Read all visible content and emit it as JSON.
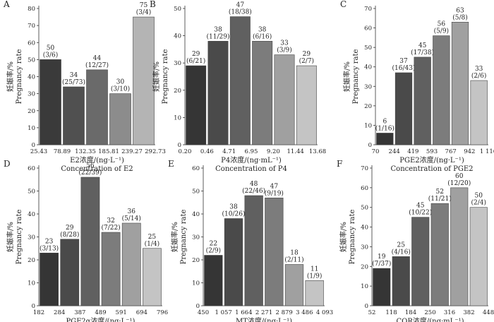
{
  "chart_data": [
    {
      "type": "bar",
      "panel": "A",
      "ylabel_cn": "妊娠率/%",
      "ylabel_en": "Pregnancy rate",
      "xlabel_cn": "E2浓度/(ng·L⁻¹)",
      "xlabel_en": "Concentration of E2",
      "x_ticks": [
        "25.43",
        "78.89",
        "132.35",
        "185.81",
        "239.27",
        "292.73"
      ],
      "ylim": [
        0,
        80
      ],
      "y_ticks": [
        0,
        10,
        20,
        30,
        40,
        50,
        60,
        70,
        80
      ],
      "values": [
        50,
        34,
        44,
        30,
        75
      ],
      "counts": [
        "(3/6)",
        "(25/73)",
        "(12/27)",
        "(3/10)",
        "(3/4)"
      ],
      "colors": [
        "#3a3a3a",
        "#505050",
        "#6a6a6a",
        "#8c8c8c",
        "#b4b4b4"
      ]
    },
    {
      "type": "bar",
      "panel": "B",
      "ylabel_cn": "妊娠率/%",
      "ylabel_en": "Pregnancy rate",
      "xlabel_cn": "P4浓度/(ng·mL⁻¹)",
      "xlabel_en": "Concentration of P4",
      "x_ticks": [
        "0.20",
        "0.46",
        "4.71",
        "6.95",
        "9.20",
        "11.44",
        "13.68"
      ],
      "ylim": [
        0,
        50
      ],
      "y_ticks": [
        0,
        10,
        20,
        30,
        40,
        50
      ],
      "values": [
        29,
        38,
        47,
        38,
        33,
        29
      ],
      "counts": [
        "(6/21)",
        "(11/29)",
        "(18/38)",
        "(6/16)",
        "(3/9)",
        "(2/7)"
      ],
      "colors": [
        "#353535",
        "#4a4a4a",
        "#606060",
        "#7c7c7c",
        "#a0a0a0",
        "#c4c4c4"
      ]
    },
    {
      "type": "bar",
      "panel": "C",
      "ylabel_cn": "妊娠率/%",
      "ylabel_en": "Pregnancy rate",
      "xlabel_cn": "PGE2浓度/(ng·L⁻¹)",
      "xlabel_en": "Concentration of PGE2",
      "x_ticks": [
        "70",
        "244",
        "419",
        "593",
        "767",
        "942",
        "1 116"
      ],
      "ylim": [
        0,
        70
      ],
      "y_ticks": [
        0,
        10,
        20,
        30,
        40,
        50,
        60,
        70
      ],
      "values": [
        6,
        37,
        45,
        56,
        63,
        33
      ],
      "counts": [
        "(1/16)",
        "(16/43)",
        "(17/38)",
        "(5/9)",
        "(5/8)",
        "(2/6)"
      ],
      "colors": [
        "#353535",
        "#4a4a4a",
        "#606060",
        "#7c7c7c",
        "#a0a0a0",
        "#c4c4c4"
      ]
    },
    {
      "type": "bar",
      "panel": "D",
      "ylabel_cn": "妊娠率/%",
      "ylabel_en": "Pregnancy rate",
      "xlabel_cn": "PGF2α浓度/(ng·L⁻¹)",
      "xlabel_en": "Concentration of PGF2α",
      "x_ticks": [
        "182",
        "284",
        "387",
        "489",
        "591",
        "694",
        "796"
      ],
      "ylim": [
        0,
        60
      ],
      "y_ticks": [
        0,
        10,
        20,
        30,
        40,
        50,
        60
      ],
      "values": [
        23,
        29,
        56,
        32,
        36,
        25
      ],
      "counts": [
        "(3/13)",
        "(8/28)",
        "(22/39)",
        "(7/22)",
        "(5/14)",
        "(1/4)"
      ],
      "colors": [
        "#353535",
        "#4a4a4a",
        "#606060",
        "#7c7c7c",
        "#a0a0a0",
        "#c4c4c4"
      ]
    },
    {
      "type": "bar",
      "panel": "E",
      "ylabel_cn": "妊娠率/%",
      "ylabel_en": "Pregnancy rate",
      "xlabel_cn": "MT浓度/(ng·L⁻¹)",
      "xlabel_en": "Concentration of MT",
      "x_ticks": [
        "450",
        "1 057",
        "1 664",
        "2 271",
        "2 879",
        "3 486",
        "4 093"
      ],
      "ylim": [
        0,
        60
      ],
      "y_ticks": [
        0,
        10,
        20,
        30,
        40,
        50,
        60
      ],
      "values": [
        22,
        38,
        48,
        47,
        18,
        11
      ],
      "counts": [
        "(2/9)",
        "(10/26)",
        "(22/46)",
        "(9/19)",
        "(2/11)",
        "(1/9)"
      ],
      "colors": [
        "#353535",
        "#4a4a4a",
        "#606060",
        "#7c7c7c",
        "#a0a0a0",
        "#c4c4c4"
      ]
    },
    {
      "type": "bar",
      "panel": "F",
      "ylabel_cn": "妊娠率/%",
      "ylabel_en": "Pregnancy rate",
      "xlabel_cn": "COR浓度/(ng·mL⁻¹)",
      "xlabel_en": "Concentration of COR",
      "x_ticks": [
        "52",
        "118",
        "184",
        "250",
        "316",
        "382",
        "448"
      ],
      "ylim": [
        0,
        70
      ],
      "y_ticks": [
        0,
        10,
        20,
        30,
        40,
        50,
        60,
        70
      ],
      "values": [
        19,
        25,
        45,
        52,
        60,
        50
      ],
      "counts": [
        "(7/37)",
        "(4/16)",
        "(10/22)",
        "(11/21)",
        "(12/20)",
        "(2/4)"
      ],
      "colors": [
        "#353535",
        "#4a4a4a",
        "#606060",
        "#7c7c7c",
        "#a0a0a0",
        "#c4c4c4"
      ]
    }
  ]
}
